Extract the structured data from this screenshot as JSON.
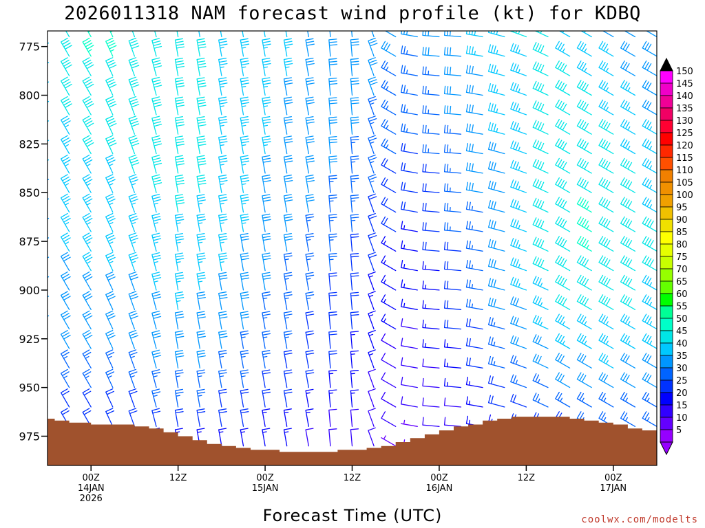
{
  "chart_data": {
    "type": "wind_barb_profile",
    "title": "2026011318 NAM forecast wind profile (kt) for KDBQ",
    "xlabel": "Forecast Time (UTC)",
    "credit": "coolwx.com/modelts",
    "y_axis": {
      "units": "hPa",
      "range": [
        990,
        767
      ],
      "ticks": [
        775,
        800,
        825,
        850,
        875,
        900,
        925,
        950,
        975
      ]
    },
    "x_axis": {
      "units": "hours since 2026-01-13 18Z",
      "range": [
        0,
        84
      ],
      "ticks": [
        {
          "hour": 6,
          "lines": [
            "00Z",
            "14JAN",
            "2026"
          ]
        },
        {
          "hour": 18,
          "lines": [
            "12Z"
          ]
        },
        {
          "hour": 30,
          "lines": [
            "00Z",
            "15JAN"
          ]
        },
        {
          "hour": 42,
          "lines": [
            "12Z"
          ]
        },
        {
          "hour": 54,
          "lines": [
            "00Z",
            "16JAN"
          ]
        },
        {
          "hour": 66,
          "lines": [
            "12Z"
          ]
        },
        {
          "hour": 78,
          "lines": [
            "00Z",
            "17JAN"
          ]
        }
      ]
    },
    "wind_levels_hpa": [
      770,
      780,
      790,
      800,
      810,
      820,
      830,
      840,
      850,
      860,
      870,
      880,
      890,
      900,
      910,
      920,
      930,
      940,
      950,
      960,
      970,
      980
    ],
    "wind_hours": [
      0,
      3,
      6,
      9,
      12,
      15,
      18,
      21,
      24,
      27,
      30,
      33,
      36,
      39,
      42,
      45,
      48,
      51,
      54,
      57,
      60,
      63,
      66,
      69,
      72,
      75,
      78,
      81,
      84
    ],
    "wind_direction_deg": [
      330,
      330,
      330,
      335,
      340,
      345,
      350,
      350,
      350,
      350,
      350,
      350,
      350,
      355,
      355,
      340,
      300,
      280,
      275,
      275,
      280,
      285,
      290,
      295,
      300,
      300,
      300,
      300,
      300
    ],
    "wind_speed_kt": [
      [
        40,
        44,
        46,
        46,
        44,
        42,
        40,
        39,
        38,
        37,
        36,
        35,
        34,
        34,
        34,
        33,
        32,
        30,
        31,
        34,
        36,
        39,
        40,
        40,
        38,
        36,
        34,
        33,
        32
      ],
      [
        39,
        43,
        45,
        45,
        44,
        42,
        41,
        40,
        39,
        37,
        36,
        35,
        34,
        33,
        33,
        32,
        30,
        29,
        30,
        33,
        35,
        38,
        39,
        40,
        39,
        37,
        35,
        33,
        32
      ],
      [
        38,
        42,
        44,
        44,
        44,
        43,
        42,
        41,
        39,
        37,
        36,
        35,
        34,
        33,
        32,
        31,
        29,
        28,
        29,
        32,
        34,
        37,
        38,
        40,
        40,
        38,
        36,
        34,
        32
      ],
      [
        37,
        41,
        43,
        43,
        43,
        44,
        43,
        41,
        39,
        37,
        35,
        34,
        33,
        32,
        31,
        30,
        28,
        27,
        28,
        31,
        33,
        36,
        38,
        40,
        41,
        40,
        38,
        35,
        33
      ],
      [
        36,
        40,
        42,
        42,
        43,
        44,
        44,
        42,
        39,
        37,
        35,
        34,
        33,
        32,
        31,
        29,
        27,
        26,
        27,
        30,
        33,
        35,
        37,
        40,
        42,
        41,
        39,
        36,
        34
      ],
      [
        36,
        39,
        41,
        41,
        42,
        43,
        44,
        42,
        39,
        37,
        35,
        34,
        32,
        31,
        30,
        28,
        26,
        25,
        26,
        29,
        32,
        35,
        37,
        40,
        42,
        42,
        40,
        38,
        35
      ],
      [
        35,
        38,
        40,
        40,
        41,
        42,
        43,
        41,
        39,
        36,
        35,
        33,
        32,
        31,
        29,
        27,
        25,
        24,
        25,
        28,
        31,
        34,
        37,
        40,
        43,
        43,
        41,
        39,
        36
      ],
      [
        35,
        37,
        39,
        39,
        40,
        41,
        42,
        41,
        38,
        36,
        34,
        33,
        31,
        30,
        28,
        26,
        24,
        23,
        24,
        27,
        30,
        34,
        37,
        40,
        43,
        44,
        42,
        40,
        37
      ],
      [
        34,
        36,
        38,
        39,
        39,
        40,
        41,
        40,
        38,
        36,
        34,
        32,
        31,
        29,
        27,
        25,
        22,
        22,
        23,
        26,
        30,
        33,
        37,
        40,
        43,
        44,
        43,
        41,
        38
      ],
      [
        34,
        36,
        37,
        38,
        38,
        39,
        40,
        39,
        37,
        35,
        33,
        32,
        30,
        28,
        26,
        24,
        21,
        20,
        22,
        25,
        29,
        33,
        37,
        41,
        44,
        45,
        44,
        42,
        39
      ],
      [
        33,
        35,
        37,
        37,
        37,
        38,
        39,
        38,
        36,
        35,
        33,
        31,
        29,
        27,
        25,
        22,
        20,
        19,
        21,
        25,
        28,
        33,
        37,
        41,
        44,
        45,
        44,
        42,
        40
      ],
      [
        33,
        35,
        36,
        36,
        36,
        37,
        38,
        37,
        36,
        34,
        32,
        30,
        28,
        26,
        24,
        21,
        19,
        18,
        20,
        24,
        28,
        32,
        36,
        41,
        44,
        45,
        44,
        43,
        40
      ],
      [
        32,
        34,
        35,
        35,
        35,
        36,
        37,
        36,
        35,
        33,
        31,
        29,
        27,
        25,
        23,
        20,
        18,
        17,
        19,
        23,
        27,
        32,
        36,
        40,
        43,
        44,
        44,
        42,
        40
      ],
      [
        32,
        33,
        34,
        34,
        34,
        35,
        36,
        35,
        34,
        32,
        30,
        28,
        26,
        24,
        22,
        19,
        17,
        16,
        18,
        22,
        26,
        31,
        35,
        39,
        42,
        43,
        43,
        41,
        39
      ],
      [
        31,
        32,
        33,
        33,
        33,
        34,
        35,
        34,
        33,
        31,
        29,
        27,
        25,
        23,
        21,
        18,
        16,
        15,
        17,
        21,
        25,
        30,
        34,
        37,
        40,
        41,
        41,
        40,
        38
      ],
      [
        30,
        31,
        32,
        32,
        32,
        33,
        33,
        33,
        32,
        30,
        28,
        26,
        24,
        22,
        20,
        17,
        15,
        14,
        16,
        20,
        24,
        28,
        32,
        35,
        38,
        39,
        39,
        38,
        36
      ],
      [
        29,
        30,
        31,
        31,
        31,
        31,
        32,
        31,
        30,
        29,
        27,
        25,
        23,
        21,
        19,
        16,
        14,
        13,
        15,
        19,
        23,
        27,
        30,
        33,
        35,
        37,
        37,
        36,
        35
      ],
      [
        27,
        28,
        29,
        29,
        29,
        30,
        30,
        30,
        29,
        27,
        25,
        24,
        22,
        20,
        18,
        15,
        13,
        12,
        14,
        18,
        21,
        25,
        28,
        31,
        33,
        34,
        35,
        34,
        33
      ],
      [
        25,
        26,
        27,
        27,
        27,
        28,
        28,
        28,
        27,
        25,
        24,
        22,
        20,
        18,
        16,
        14,
        12,
        11,
        13,
        16,
        19,
        23,
        26,
        28,
        30,
        31,
        32,
        32,
        31
      ],
      [
        22,
        23,
        24,
        24,
        24,
        25,
        25,
        25,
        24,
        23,
        21,
        20,
        18,
        16,
        15,
        13,
        11,
        10,
        12,
        14,
        17,
        20,
        23,
        25,
        27,
        28,
        29,
        29,
        28
      ],
      [
        19,
        20,
        21,
        21,
        21,
        22,
        22,
        22,
        21,
        20,
        19,
        17,
        16,
        14,
        13,
        11,
        10,
        9,
        10,
        12,
        15,
        17,
        20,
        22,
        24,
        25,
        26,
        26,
        25
      ],
      [
        16,
        17,
        18,
        18,
        18,
        19,
        19,
        19,
        18,
        17,
        16,
        15,
        14,
        12,
        11,
        10,
        9,
        8,
        9,
        11,
        13,
        15,
        17,
        19,
        21,
        22,
        23,
        23,
        22
      ]
    ],
    "surface_pressure_hpa": [
      [
        0,
        966
      ],
      [
        1,
        967
      ],
      [
        2,
        967
      ],
      [
        3,
        968
      ],
      [
        4,
        968
      ],
      [
        6,
        969
      ],
      [
        8,
        969
      ],
      [
        10,
        969
      ],
      [
        12,
        970
      ],
      [
        14,
        971
      ],
      [
        16,
        973
      ],
      [
        18,
        975
      ],
      [
        20,
        977
      ],
      [
        22,
        979
      ],
      [
        24,
        980
      ],
      [
        26,
        981
      ],
      [
        28,
        982
      ],
      [
        30,
        982
      ],
      [
        32,
        983
      ],
      [
        34,
        983
      ],
      [
        36,
        983
      ],
      [
        38,
        983
      ],
      [
        40,
        982
      ],
      [
        42,
        982
      ],
      [
        44,
        981
      ],
      [
        46,
        980
      ],
      [
        48,
        978
      ],
      [
        50,
        976
      ],
      [
        52,
        974
      ],
      [
        54,
        972
      ],
      [
        56,
        970
      ],
      [
        58,
        969
      ],
      [
        60,
        967
      ],
      [
        62,
        966
      ],
      [
        64,
        965
      ],
      [
        66,
        965
      ],
      [
        68,
        965
      ],
      [
        70,
        965
      ],
      [
        72,
        966
      ],
      [
        74,
        967
      ],
      [
        76,
        968
      ],
      [
        78,
        969
      ],
      [
        80,
        971
      ],
      [
        82,
        972
      ],
      [
        84,
        973
      ]
    ],
    "colorbar": {
      "units": "kt",
      "labels": [
        "150",
        "145",
        "140",
        "135",
        "130",
        "125",
        "120",
        "115",
        "110",
        "105",
        "100",
        "95",
        "90",
        "85",
        "80",
        "75",
        "70",
        "65",
        "60",
        "55",
        "50",
        "45",
        "40",
        "35",
        "30",
        "25",
        "20",
        "15",
        "10",
        "5"
      ],
      "colors": [
        "#ff00ff",
        "#f000c8",
        "#f00096",
        "#f00064",
        "#ff0032",
        "#ff0000",
        "#ff2800",
        "#ff5000",
        "#f08000",
        "#f09000",
        "#f0a000",
        "#f0c000",
        "#f0e000",
        "#ffff00",
        "#e6ff00",
        "#c8ff00",
        "#96ff00",
        "#64ff00",
        "#00ff00",
        "#00ff96",
        "#00ffc8",
        "#00e6e6",
        "#00c8ff",
        "#0096ff",
        "#0064ff",
        "#0032ff",
        "#0000ff",
        "#3200ff",
        "#6400ff",
        "#9600ff"
      ],
      "top_arrow_color": "#000000",
      "bottom_arrow_color": "#9600ff"
    },
    "terrain_color": "#a0522d"
  }
}
